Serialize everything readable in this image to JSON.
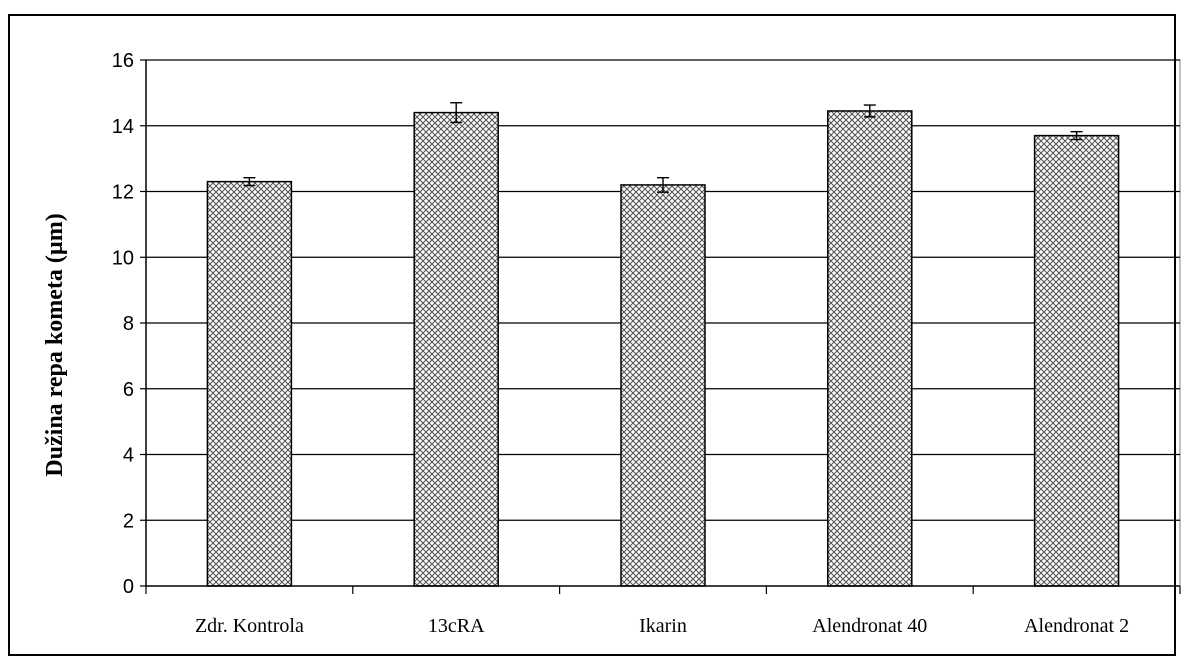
{
  "chart_data": {
    "type": "bar",
    "categories": [
      "Zdr. Kontrola",
      "13cRA",
      "Ikarin",
      "Alendronat 40",
      "Alendronat 2"
    ],
    "values": [
      12.3,
      14.4,
      12.2,
      14.45,
      13.7
    ],
    "error": [
      0.12,
      0.3,
      0.22,
      0.18,
      0.12
    ],
    "title": "",
    "xlabel": "",
    "ylabel": "Dužina repa kometa (µm)",
    "ylim": [
      0,
      16
    ],
    "yticks": [
      "0",
      "2",
      "4",
      "6",
      "8",
      "10",
      "12",
      "14",
      "16"
    ],
    "grid": true,
    "bar_pattern": "crosshatch",
    "colors": {
      "bar_fill": "#c8c8c8",
      "bar_stroke": "#000000",
      "grid": "#000000"
    }
  }
}
